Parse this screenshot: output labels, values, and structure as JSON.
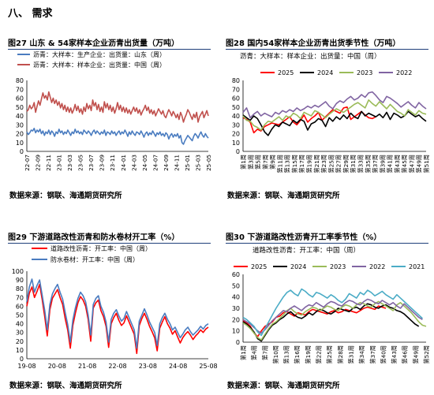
{
  "section": {
    "title": "八、 需求"
  },
  "footer": {
    "source": "数据来源：钢联、海通期货研究所"
  },
  "chart_data": [
    {
      "id": "fig27",
      "type": "line",
      "title": "图27 山东 & 54家样本企业沥青出货量（万吨）",
      "legend_position": "top-left",
      "ylim": [
        0,
        80
      ],
      "yticks": [
        0,
        10,
        20,
        30,
        40,
        50,
        60,
        70,
        80
      ],
      "x_tick_labels": [
        "22-07",
        "22-09",
        "22-11",
        "23-01",
        "23-03",
        "23-05",
        "23-07",
        "23-09",
        "23-11",
        "24-01",
        "24-03",
        "24-05",
        "24-07",
        "24-09",
        "24-11",
        "25-01",
        "25-03",
        "25-05"
      ],
      "series": [
        {
          "name": "沥青：大样本：生产企业：出货量：山东（周）",
          "color": "#4a7cc0",
          "values": [
            22,
            19,
            21,
            24,
            23,
            26,
            21,
            24,
            22,
            25,
            20,
            23,
            18,
            22,
            20,
            24,
            19,
            23,
            21,
            17,
            22,
            20,
            25,
            21,
            23,
            19,
            22,
            20,
            24,
            21,
            18,
            22,
            20,
            25,
            21,
            23,
            20,
            22,
            19,
            24,
            22,
            20,
            23,
            21,
            18,
            22,
            24,
            20,
            23,
            21,
            19,
            22,
            20,
            24,
            18,
            22,
            21,
            19,
            23,
            20,
            22,
            18,
            21,
            23,
            19,
            22,
            20,
            24,
            21,
            17,
            22,
            19,
            23,
            20,
            18,
            22,
            21,
            19,
            23,
            20,
            16,
            20,
            22,
            18,
            21,
            19,
            23,
            20,
            17,
            21,
            19,
            22,
            18,
            20,
            17,
            21,
            19,
            14,
            18,
            20,
            16,
            19,
            17,
            20,
            15,
            18,
            10,
            8,
            12,
            15,
            18,
            16,
            14,
            12,
            17,
            20,
            18,
            15,
            19,
            22,
            18,
            16,
            20,
            17,
            15
          ]
        },
        {
          "name": "沥青：大样本：样本企业：出货量：中国（周）",
          "color": "#c0504d",
          "values": [
            45,
            47,
            52,
            48,
            50,
            55,
            44,
            51,
            57,
            52,
            59,
            66,
            60,
            63,
            58,
            67,
            61,
            55,
            60,
            54,
            58,
            52,
            56,
            49,
            54,
            47,
            52,
            45,
            50,
            44,
            49,
            43,
            47,
            53,
            46,
            51,
            44,
            48,
            42,
            50,
            45,
            54,
            48,
            52,
            46,
            58,
            51,
            55,
            47,
            53,
            45,
            50,
            44,
            56,
            49,
            54,
            47,
            52,
            45,
            50,
            43,
            48,
            55,
            47,
            52,
            45,
            50,
            44,
            49,
            43,
            47,
            42,
            46,
            50,
            45,
            49,
            43,
            47,
            41,
            45,
            48,
            52,
            46,
            50,
            43,
            47,
            42,
            46,
            40,
            44,
            48,
            45,
            42,
            46,
            40,
            38,
            43,
            47,
            44,
            40,
            45,
            42,
            38,
            42,
            36,
            44,
            40,
            33,
            38,
            42,
            47,
            44,
            40,
            36,
            42,
            38,
            44,
            33,
            39,
            42,
            45,
            38,
            42,
            46,
            40
          ]
        }
      ]
    },
    {
      "id": "fig28",
      "type": "line",
      "title": "图28 国内54家样本企业沥青出货季节性（万吨）",
      "subtitle": "沥青：大样本：样本企业：出货量：中国（周）",
      "legend_position": "top",
      "ylim": [
        0,
        80
      ],
      "yticks": [
        0,
        10,
        20,
        30,
        40,
        50,
        60,
        70,
        80
      ],
      "x_tick_labels": [
        "第1周",
        "第3周",
        "第5周",
        "第7周",
        "第9周",
        "第11周",
        "第13周",
        "第15周",
        "第17周",
        "第19周",
        "第21周",
        "第23周",
        "第25周",
        "第27周",
        "第29周",
        "第31周",
        "第33周",
        "第35周",
        "第37周",
        "第39周",
        "第41周",
        "第43周",
        "第45周",
        "第47周",
        "第49周",
        "第51周"
      ],
      "series": [
        {
          "name": "2025",
          "color": "#ff0000",
          "values": [
            38,
            36,
            33,
            21,
            25,
            23,
            28,
            30,
            32,
            31,
            30,
            33,
            36,
            39,
            33,
            30,
            35,
            41,
            33,
            37,
            40,
            44,
            35,
            39,
            43,
            47,
            45,
            43,
            49,
            50,
            36,
            39,
            42,
            45,
            41,
            38,
            37,
            39
          ]
        },
        {
          "name": "2024",
          "color": "#000000",
          "values": [
            41,
            38,
            35,
            40,
            37,
            30,
            22,
            18,
            25,
            30,
            28,
            33,
            31,
            29,
            35,
            32,
            36,
            34,
            24,
            31,
            33,
            37,
            35,
            28,
            38,
            34,
            39,
            36,
            41,
            37,
            43,
            39,
            37,
            45,
            40,
            43,
            41,
            39,
            42,
            38,
            44,
            36,
            43,
            41,
            38,
            40,
            45,
            42,
            39,
            41,
            37,
            34
          ]
        },
        {
          "name": "2023",
          "color": "#9bbb59",
          "values": [
            40,
            35,
            34,
            29,
            27,
            24,
            30,
            34,
            33,
            36,
            39,
            35,
            40,
            38,
            43,
            41,
            37,
            44,
            42,
            40,
            46,
            44,
            41,
            38,
            42,
            45,
            48,
            46,
            44,
            47,
            50,
            53,
            55,
            52,
            49,
            58,
            54,
            51,
            56,
            52,
            48,
            53,
            49,
            45,
            43,
            40,
            47,
            44,
            41,
            46,
            43,
            42
          ]
        },
        {
          "name": "2022",
          "color": "#8064a2",
          "values": [
            44,
            49,
            38,
            42,
            45,
            40,
            43,
            41,
            39,
            44,
            42,
            46,
            44,
            47,
            45,
            49,
            46,
            48,
            51,
            49,
            52,
            50,
            53,
            56,
            51,
            48,
            54,
            57,
            55,
            59,
            62,
            58,
            60,
            64,
            61,
            66,
            67,
            63,
            58,
            55,
            62,
            60,
            57,
            54,
            50,
            53,
            56,
            52,
            49,
            55,
            51,
            48
          ]
        }
      ]
    },
    {
      "id": "fig29",
      "type": "line",
      "title": "图29 下游道路改性沥青和防水卷材开工率（%）",
      "legend_position": "top-left",
      "ylim": [
        0,
        100
      ],
      "yticks": [
        0,
        10,
        20,
        30,
        40,
        50,
        60,
        70,
        80,
        90,
        100
      ],
      "x_tick_labels": [
        "19-08",
        "20-08",
        "21-08",
        "22-08",
        "23-08",
        "24-08",
        "25-08"
      ],
      "series": [
        {
          "name": "道路改性沥青：开工率：中国（周）",
          "color": "#ff0000",
          "values": [
            60,
            75,
            82,
            70,
            77,
            85,
            68,
            48,
            26,
            56,
            69,
            74,
            79,
            70,
            62,
            46,
            33,
            12,
            38,
            52,
            64,
            71,
            67,
            60,
            45,
            20,
            58,
            64,
            67,
            55,
            48,
            37,
            13,
            40,
            47,
            52,
            44,
            38,
            41,
            49,
            42,
            35,
            28,
            6,
            38,
            46,
            52,
            45,
            37,
            31,
            24,
            9,
            35,
            42,
            48,
            40,
            35,
            28,
            32,
            25,
            18,
            24,
            28,
            31,
            27,
            22,
            26,
            29,
            33,
            30,
            34,
            36
          ]
        },
        {
          "name": "防水卷材：开工率：中国（周）",
          "color": "#4a7cc0",
          "values": [
            65,
            82,
            91,
            76,
            84,
            90,
            73,
            55,
            33,
            62,
            74,
            80,
            85,
            76,
            68,
            53,
            39,
            19,
            44,
            58,
            69,
            76,
            72,
            65,
            50,
            27,
            62,
            69,
            72,
            60,
            53,
            42,
            19,
            45,
            52,
            56,
            49,
            43,
            46,
            54,
            47,
            40,
            33,
            12,
            43,
            50,
            57,
            50,
            42,
            36,
            30,
            15,
            40,
            47,
            52,
            45,
            40,
            33,
            36,
            30,
            24,
            28,
            33,
            36,
            31,
            27,
            30,
            33,
            37,
            34,
            38,
            40
          ]
        }
      ]
    },
    {
      "id": "fig30",
      "type": "line",
      "title": "图30 下游道路改性沥青开工率季节性（%）",
      "subtitle": "道路改性沥青：开工率：中国（周）",
      "legend_position": "top",
      "ylim": [
        0,
        60
      ],
      "yticks": [
        0,
        10,
        20,
        30,
        40,
        50,
        60
      ],
      "x_tick_labels": [
        "第1周",
        "第4周",
        "第7周",
        "第10周",
        "第13周",
        "第16周",
        "第19周",
        "第22周",
        "第25周",
        "第28周",
        "第31周",
        "第34周",
        "第37周",
        "第40周",
        "第43周",
        "第46周",
        "第49周",
        "第52周"
      ],
      "series": [
        {
          "name": "2025",
          "color": "#ff0000",
          "values": [
            19,
            17,
            14,
            8,
            5,
            10,
            14,
            16,
            18,
            22,
            23,
            26,
            27,
            25,
            23,
            26,
            25,
            24,
            27,
            29,
            28,
            27,
            26,
            25,
            27,
            28,
            26,
            27,
            29,
            28,
            27,
            26,
            28,
            30,
            31,
            30,
            29,
            32,
            31,
            30
          ]
        },
        {
          "name": "2024",
          "color": "#000000",
          "values": [
            18,
            16,
            13,
            9,
            3,
            1,
            6,
            11,
            15,
            17,
            20,
            22,
            25,
            27,
            24,
            22,
            21,
            23,
            26,
            24,
            27,
            29,
            28,
            26,
            25,
            27,
            30,
            29,
            28,
            27,
            30,
            31,
            29,
            32,
            34,
            33,
            31,
            30,
            32,
            33,
            31,
            30,
            28,
            27,
            25,
            22,
            19,
            16,
            14
          ]
        },
        {
          "name": "2023",
          "color": "#9bbb59",
          "values": [
            17,
            15,
            12,
            8,
            4,
            2,
            7,
            12,
            16,
            18,
            21,
            24,
            28,
            30,
            27,
            25,
            24,
            27,
            29,
            31,
            30,
            28,
            30,
            32,
            31,
            29,
            28,
            31,
            33,
            32,
            30,
            33,
            35,
            34,
            32,
            31,
            34,
            36,
            34,
            32,
            30,
            28,
            33,
            35,
            32,
            29,
            26,
            22,
            18,
            15,
            14
          ]
        },
        {
          "name": "2022",
          "color": "#8064a2",
          "values": [
            20,
            18,
            16,
            13,
            10,
            8,
            11,
            15,
            19,
            22,
            25,
            28,
            27,
            30,
            32,
            30,
            28,
            31,
            33,
            32,
            35,
            33,
            31,
            34,
            36,
            35,
            33,
            32,
            35,
            37,
            36,
            34,
            33,
            36,
            38,
            37,
            35,
            34,
            37,
            35,
            33,
            35,
            32,
            30,
            34,
            31,
            28,
            25,
            22,
            20
          ]
        },
        {
          "name": "2021",
          "color": "#4bacc6",
          "values": [
            22,
            20,
            17,
            14,
            9,
            6,
            12,
            18,
            24,
            30,
            35,
            40,
            44,
            46,
            43,
            41,
            47,
            45,
            42,
            40,
            44,
            43,
            41,
            39,
            42,
            40,
            37,
            35,
            38,
            43,
            41,
            39,
            44,
            42,
            46,
            44,
            41,
            43,
            45,
            42,
            40,
            38,
            42,
            39,
            36,
            33,
            30,
            27,
            24,
            21
          ]
        }
      ]
    }
  ]
}
